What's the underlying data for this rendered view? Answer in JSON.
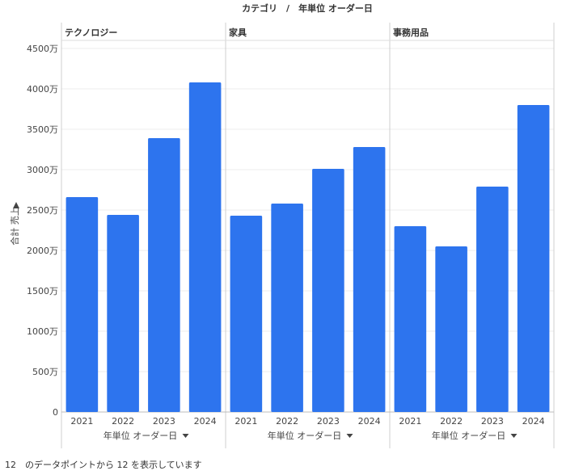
{
  "chart_data": {
    "type": "bar",
    "title": "カテゴリ　/　年単位 オーダー日",
    "ylabel": "合計 売上",
    "xlabel": "年単位 オーダー日",
    "ylim": [
      0,
      4600
    ],
    "yticks": [
      0,
      500,
      1000,
      1500,
      2000,
      2500,
      3000,
      3500,
      4000,
      4500
    ],
    "ytick_labels": [
      "0",
      "500万",
      "1000万",
      "1500万",
      "2000万",
      "2500万",
      "3000万",
      "3500万",
      "4000万",
      "4500万"
    ],
    "categories": [
      "2021",
      "2022",
      "2023",
      "2024"
    ],
    "series": [
      {
        "name": "テクノロジー",
        "values": [
          2660,
          2440,
          3390,
          4080
        ]
      },
      {
        "name": "家具",
        "values": [
          2430,
          2580,
          3010,
          3280
        ]
      },
      {
        "name": "事務用品",
        "values": [
          2300,
          2050,
          2790,
          3800
        ]
      }
    ],
    "bar_color": "#2d74ee",
    "grid": true
  },
  "footer": "12　のデータポイントから 12 を表示しています"
}
